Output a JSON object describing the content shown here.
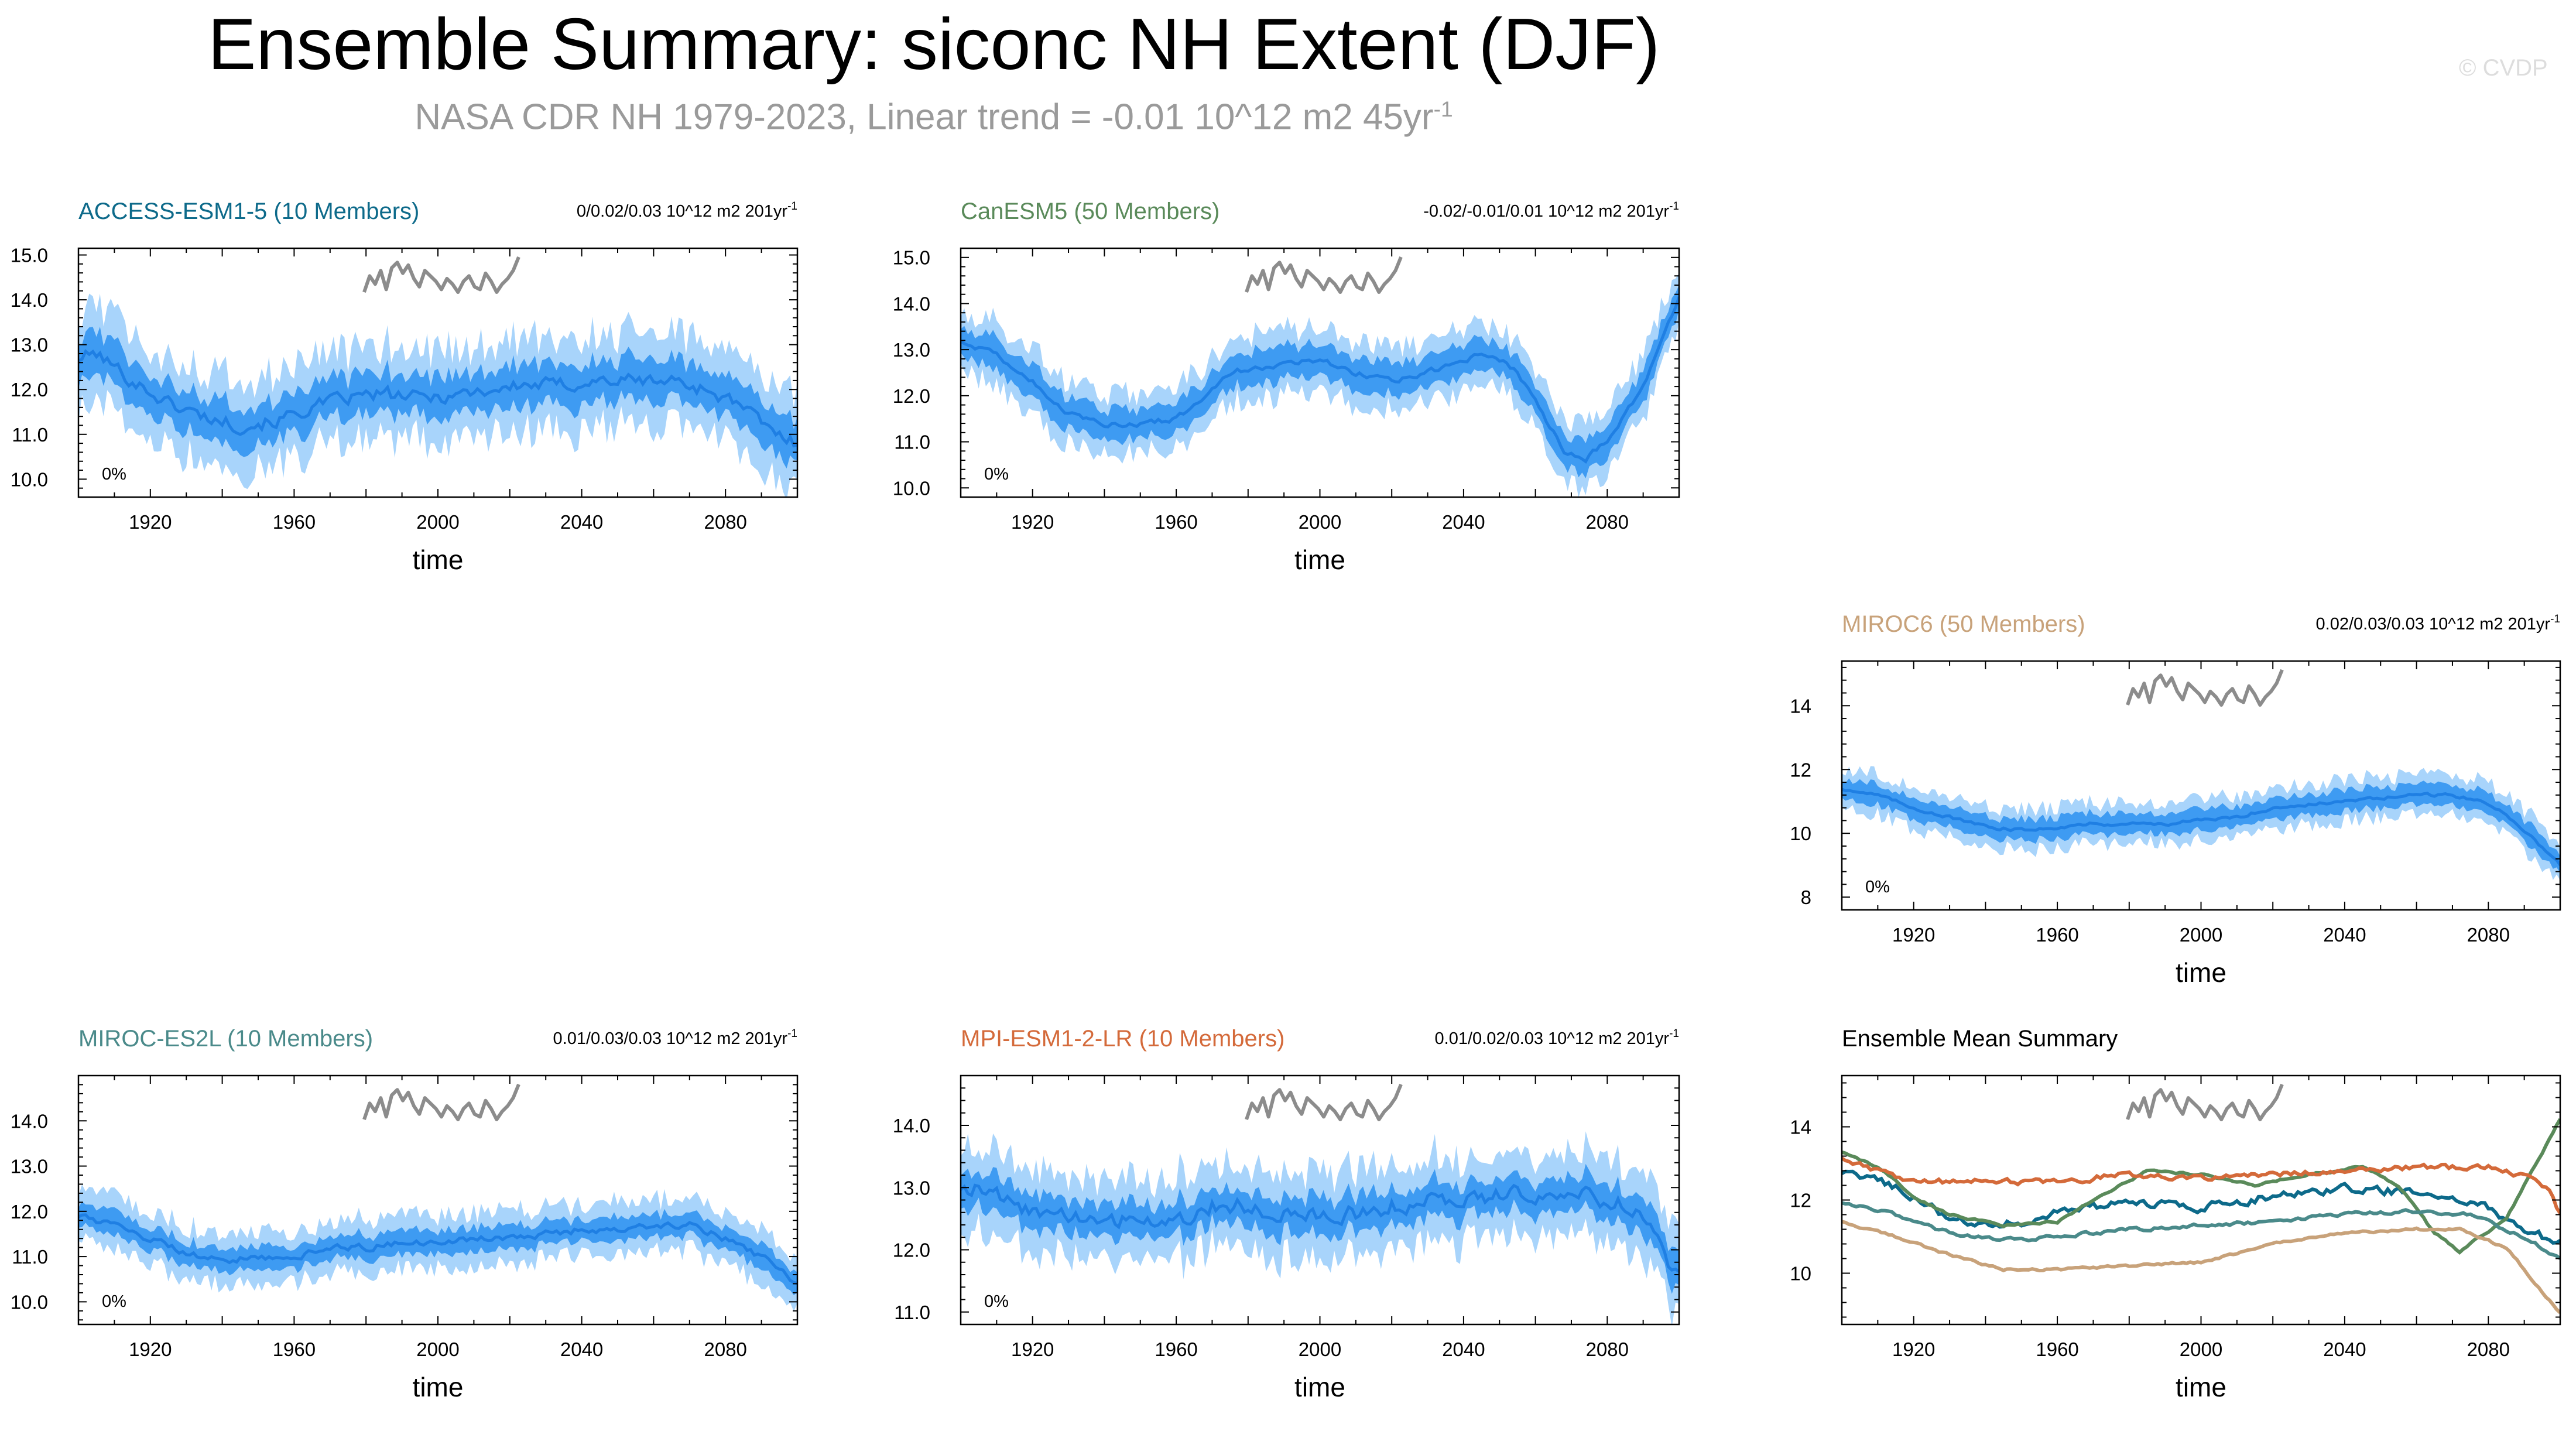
{
  "figure": {
    "title": "Ensemble Summary: siconc NH Extent (DJF)",
    "subtitle": {
      "text": "NASA CDR NH 1979-2023, Linear trend = -0.01 10^12 m2 45yr",
      "sup": "-1"
    },
    "credit": "© CVDP"
  },
  "colors": {
    "band_outer": "#a8d4fb",
    "band_inner": "#3e9bf2",
    "mean_line": "#1f7fe3",
    "obs_line": "#8c8c8c",
    "axis": "#000000"
  },
  "chart_data": [
    {
      "id": "access",
      "type": "line",
      "title": "ACCESS-ESM1-5 (10 Members)",
      "title_color": "#0d6a8a",
      "trend_label": "0/0.02/0.03 10^12 m2 201yr",
      "trend_sup": "-1",
      "percent_label": "0%",
      "xlabel": "time",
      "xlim": [
        1900,
        2100
      ],
      "xticks": [
        1920,
        1960,
        2000,
        2040,
        2080
      ],
      "ylim": [
        9.6,
        15.15
      ],
      "yticks": [
        10.0,
        11.0,
        12.0,
        13.0,
        14.0,
        15.0
      ],
      "ytick_labels": [
        "10.0",
        "11.0",
        "12.0",
        "13.0",
        "14.0",
        "15.0"
      ],
      "mean_knots": [
        [
          1900,
          12.7
        ],
        [
          1905,
          12.8
        ],
        [
          1915,
          12.2
        ],
        [
          1925,
          11.7
        ],
        [
          1935,
          11.4
        ],
        [
          1945,
          11.2
        ],
        [
          1955,
          11.3
        ],
        [
          1965,
          11.6
        ],
        [
          1975,
          11.8
        ],
        [
          1985,
          11.9
        ],
        [
          1995,
          11.8
        ],
        [
          2005,
          11.9
        ],
        [
          2015,
          12.0
        ],
        [
          2025,
          12.1
        ],
        [
          2035,
          12.1
        ],
        [
          2045,
          12.2
        ],
        [
          2055,
          12.2
        ],
        [
          2065,
          12.2
        ],
        [
          2075,
          12.0
        ],
        [
          2085,
          11.6
        ],
        [
          2092,
          11.1
        ],
        [
          2100,
          10.8
        ]
      ],
      "inner_half_width": 0.4,
      "outer_half_width": 0.9,
      "noise": 0.25
    },
    {
      "id": "canesm",
      "type": "line",
      "title": "CanESM5 (50 Members)",
      "title_color": "#5a8a5a",
      "trend_label": "-0.02/-0.01/0.01 10^12 m2 201yr",
      "trend_sup": "-1",
      "percent_label": "0%",
      "xlabel": "time",
      "xlim": [
        1900,
        2100
      ],
      "xticks": [
        1920,
        1960,
        2000,
        2040,
        2080
      ],
      "ylim": [
        9.8,
        15.2
      ],
      "yticks": [
        10.0,
        11.0,
        12.0,
        13.0,
        14.0,
        15.0
      ],
      "ytick_labels": [
        "10.0",
        "11.0",
        "12.0",
        "13.0",
        "14.0",
        "15.0"
      ],
      "mean_knots": [
        [
          1900,
          13.2
        ],
        [
          1910,
          12.9
        ],
        [
          1920,
          12.3
        ],
        [
          1930,
          11.6
        ],
        [
          1940,
          11.4
        ],
        [
          1950,
          11.4
        ],
        [
          1960,
          11.5
        ],
        [
          1965,
          11.8
        ],
        [
          1975,
          12.5
        ],
        [
          1990,
          12.7
        ],
        [
          2000,
          12.8
        ],
        [
          2010,
          12.5
        ],
        [
          2020,
          12.3
        ],
        [
          2030,
          12.5
        ],
        [
          2040,
          12.8
        ],
        [
          2048,
          12.9
        ],
        [
          2055,
          12.5
        ],
        [
          2062,
          11.6
        ],
        [
          2068,
          10.8
        ],
        [
          2074,
          10.6
        ],
        [
          2082,
          11.2
        ],
        [
          2090,
          12.2
        ],
        [
          2100,
          14.1
        ]
      ],
      "inner_half_width": 0.3,
      "outer_half_width": 0.6,
      "noise": 0.1
    },
    {
      "id": "miroc6",
      "type": "line",
      "title": "MIROC6 (50 Members)",
      "title_color": "#c8a27a",
      "trend_label": "0.02/0.03/0.03 10^12 m2 201yr",
      "trend_sup": "-1",
      "percent_label": "0%",
      "xlabel": "time",
      "xlim": [
        1900,
        2100
      ],
      "xticks": [
        1920,
        1960,
        2000,
        2040,
        2080
      ],
      "ylim": [
        7.6,
        15.4
      ],
      "yticks": [
        8,
        10,
        12,
        14
      ],
      "ytick_labels": [
        "8",
        "10",
        "12",
        "14"
      ],
      "mean_knots": [
        [
          1900,
          11.4
        ],
        [
          1910,
          11.2
        ],
        [
          1920,
          10.8
        ],
        [
          1930,
          10.5
        ],
        [
          1940,
          10.2
        ],
        [
          1950,
          10.1
        ],
        [
          1960,
          10.2
        ],
        [
          1970,
          10.3
        ],
        [
          1980,
          10.3
        ],
        [
          1990,
          10.3
        ],
        [
          2000,
          10.4
        ],
        [
          2010,
          10.5
        ],
        [
          2020,
          10.8
        ],
        [
          2030,
          10.9
        ],
        [
          2040,
          11.0
        ],
        [
          2050,
          11.1
        ],
        [
          2060,
          11.2
        ],
        [
          2070,
          11.2
        ],
        [
          2078,
          11.0
        ],
        [
          2085,
          10.6
        ],
        [
          2092,
          9.9
        ],
        [
          2100,
          9.0
        ]
      ],
      "inner_half_width": 0.28,
      "outer_half_width": 0.55,
      "noise": 0.08
    },
    {
      "id": "mirocl",
      "type": "line",
      "title": "MIROC-ES2L (10 Members)",
      "title_color": "#4a8a8a",
      "trend_label": "0.01/0.03/0.03 10^12 m2 201yr",
      "trend_sup": "-1",
      "percent_label": "0%",
      "xlabel": "time",
      "xlim": [
        1900,
        2100
      ],
      "xticks": [
        1920,
        1960,
        2000,
        2040,
        2080
      ],
      "ylim": [
        9.5,
        15.0
      ],
      "yticks": [
        10.0,
        11.0,
        12.0,
        13.0,
        14.0
      ],
      "ytick_labels": [
        "10.0",
        "11.0",
        "12.0",
        "13.0",
        "14.0"
      ],
      "mean_knots": [
        [
          1900,
          11.9
        ],
        [
          1910,
          11.7
        ],
        [
          1920,
          11.4
        ],
        [
          1930,
          11.1
        ],
        [
          1940,
          10.9
        ],
        [
          1950,
          11.0
        ],
        [
          1960,
          11.0
        ],
        [
          1970,
          11.2
        ],
        [
          1980,
          11.2
        ],
        [
          1990,
          11.3
        ],
        [
          2000,
          11.3
        ],
        [
          2010,
          11.4
        ],
        [
          2020,
          11.4
        ],
        [
          2030,
          11.5
        ],
        [
          2040,
          11.6
        ],
        [
          2050,
          11.6
        ],
        [
          2060,
          11.7
        ],
        [
          2070,
          11.7
        ],
        [
          2080,
          11.4
        ],
        [
          2090,
          11.0
        ],
        [
          2100,
          10.4
        ]
      ],
      "inner_half_width": 0.22,
      "outer_half_width": 0.5,
      "noise": 0.12
    },
    {
      "id": "mpi",
      "type": "line",
      "title": "MPI-ESM1-2-LR (10 Members)",
      "title_color": "#d46a3a",
      "trend_label": "0.01/0.02/0.03 10^12 m2 201yr",
      "trend_sup": "-1",
      "percent_label": "0%",
      "xlabel": "time",
      "xlim": [
        1900,
        2100
      ],
      "xticks": [
        1920,
        1960,
        2000,
        2040,
        2080
      ],
      "ylim": [
        10.8,
        14.8
      ],
      "yticks": [
        11.0,
        12.0,
        13.0,
        14.0
      ],
      "ytick_labels": [
        "11.0",
        "12.0",
        "13.0",
        "14.0"
      ],
      "mean_knots": [
        [
          1900,
          13.0
        ],
        [
          1910,
          12.9
        ],
        [
          1920,
          12.6
        ],
        [
          1930,
          12.5
        ],
        [
          1940,
          12.5
        ],
        [
          1950,
          12.5
        ],
        [
          1960,
          12.5
        ],
        [
          1970,
          12.7
        ],
        [
          1980,
          12.7
        ],
        [
          1990,
          12.6
        ],
        [
          2000,
          12.6
        ],
        [
          2010,
          12.6
        ],
        [
          2020,
          12.7
        ],
        [
          2030,
          12.8
        ],
        [
          2040,
          12.8
        ],
        [
          2050,
          12.9
        ],
        [
          2060,
          12.9
        ],
        [
          2070,
          12.9
        ],
        [
          2080,
          12.8
        ],
        [
          2090,
          12.6
        ],
        [
          2100,
          11.5
        ]
      ],
      "inner_half_width": 0.25,
      "outer_half_width": 0.6,
      "noise": 0.22
    },
    {
      "id": "summary",
      "type": "line",
      "title": "Ensemble Mean Summary",
      "title_color": "#000000",
      "xlabel": "time",
      "xlim": [
        1900,
        2100
      ],
      "xticks": [
        1920,
        1960,
        2000,
        2040,
        2080
      ],
      "ylim": [
        8.6,
        15.4
      ],
      "yticks": [
        10,
        12,
        14
      ],
      "ytick_labels": [
        "10",
        "12",
        "14"
      ],
      "series": [
        {
          "name": "ACCESS-ESM1-5",
          "color": "#0d6a8a",
          "noise": 0.18,
          "knots": [
            [
              1900,
              12.7
            ],
            [
              1910,
              12.6
            ],
            [
              1920,
              12.1
            ],
            [
              1930,
              11.5
            ],
            [
              1940,
              11.3
            ],
            [
              1950,
              11.4
            ],
            [
              1960,
              11.7
            ],
            [
              1980,
              11.9
            ],
            [
              2000,
              11.8
            ],
            [
              2020,
              12.1
            ],
            [
              2040,
              12.3
            ],
            [
              2060,
              12.2
            ],
            [
              2080,
              11.8
            ],
            [
              2090,
              11.2
            ],
            [
              2100,
              10.8
            ]
          ]
        },
        {
          "name": "CanESM5",
          "color": "#5a8a5a",
          "noise": 0.05,
          "knots": [
            [
              1900,
              13.3
            ],
            [
              1910,
              12.9
            ],
            [
              1920,
              12.1
            ],
            [
              1930,
              11.6
            ],
            [
              1945,
              11.3
            ],
            [
              1960,
              11.4
            ],
            [
              1970,
              12.0
            ],
            [
              1985,
              12.8
            ],
            [
              2000,
              12.7
            ],
            [
              2015,
              12.4
            ],
            [
              2030,
              12.7
            ],
            [
              2045,
              12.9
            ],
            [
              2055,
              12.4
            ],
            [
              2065,
              11.1
            ],
            [
              2072,
              10.6
            ],
            [
              2085,
              11.5
            ],
            [
              2100,
              14.2
            ]
          ]
        },
        {
          "name": "MIROC6",
          "color": "#c8a27a",
          "noise": 0.05,
          "knots": [
            [
              1900,
              11.4
            ],
            [
              1915,
              11.0
            ],
            [
              1930,
              10.5
            ],
            [
              1945,
              10.1
            ],
            [
              1960,
              10.1
            ],
            [
              1980,
              10.2
            ],
            [
              2000,
              10.3
            ],
            [
              2020,
              10.8
            ],
            [
              2040,
              11.1
            ],
            [
              2060,
              11.2
            ],
            [
              2072,
              11.2
            ],
            [
              2085,
              10.7
            ],
            [
              2100,
              8.9
            ]
          ]
        },
        {
          "name": "MIROC-ES2L",
          "color": "#4a8a8a",
          "noise": 0.08,
          "knots": [
            [
              1900,
              11.9
            ],
            [
              1915,
              11.6
            ],
            [
              1930,
              11.1
            ],
            [
              1945,
              10.9
            ],
            [
              1960,
              11.0
            ],
            [
              1980,
              11.2
            ],
            [
              2000,
              11.3
            ],
            [
              2020,
              11.4
            ],
            [
              2040,
              11.6
            ],
            [
              2060,
              11.7
            ],
            [
              2075,
              11.6
            ],
            [
              2090,
              11.0
            ],
            [
              2100,
              10.4
            ]
          ]
        },
        {
          "name": "MPI-ESM1-2-LR",
          "color": "#d46a3a",
          "noise": 0.12,
          "knots": [
            [
              1900,
              13.1
            ],
            [
              1910,
              12.8
            ],
            [
              1920,
              12.5
            ],
            [
              1940,
              12.5
            ],
            [
              1960,
              12.5
            ],
            [
              1980,
              12.7
            ],
            [
              2000,
              12.6
            ],
            [
              2020,
              12.7
            ],
            [
              2040,
              12.8
            ],
            [
              2060,
              12.9
            ],
            [
              2080,
              12.9
            ],
            [
              2092,
              12.6
            ],
            [
              2097,
              12.3
            ],
            [
              2100,
              11.6
            ]
          ]
        }
      ]
    }
  ],
  "obs_inset": {
    "label": "NASA CDR NH 1979-2023",
    "values": [
      11.8,
      12.4,
      12.1,
      12.6,
      11.9,
      12.7,
      12.9,
      12.5,
      12.8,
      12.3,
      12.0,
      12.6,
      12.4,
      12.2,
      11.9,
      12.3,
      12.1,
      11.8,
      12.2,
      12.4,
      12.0,
      11.9,
      12.5,
      12.2,
      11.8,
      12.1,
      12.3,
      12.6,
      13.1
    ]
  }
}
